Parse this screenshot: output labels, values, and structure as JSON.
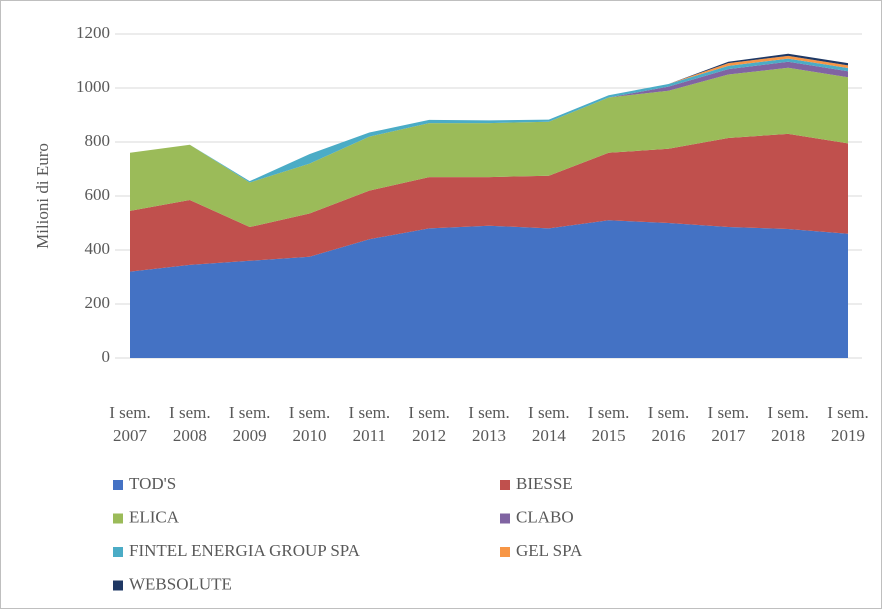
{
  "chart_data": {
    "type": "area",
    "stacked": true,
    "y_label": "Milioni di Euro",
    "categories": [
      "I sem. 2007",
      "I sem. 2008",
      "I sem. 2009",
      "I sem. 2010",
      "I sem. 2011",
      "I sem. 2012",
      "I sem. 2013",
      "I sem. 2014",
      "I sem. 2015",
      "I sem. 2016",
      "I sem. 2017",
      "I sem. 2018",
      "I sem. 2019"
    ],
    "series": [
      {
        "name": "TOD'S",
        "color": "#4472c4",
        "values": [
          320,
          345,
          360,
          375,
          440,
          480,
          490,
          480,
          510,
          500,
          485,
          478,
          460
        ]
      },
      {
        "name": "BIESSE",
        "color": "#c0504d",
        "values": [
          225,
          240,
          125,
          160,
          180,
          190,
          180,
          195,
          250,
          275,
          330,
          352,
          335
        ]
      },
      {
        "name": "ELICA",
        "color": "#9bbb59",
        "values": [
          215,
          205,
          165,
          185,
          200,
          200,
          200,
          200,
          205,
          215,
          235,
          245,
          245
        ]
      },
      {
        "name": "CLABO",
        "color": "#8064a2",
        "values": [
          0,
          0,
          0,
          0,
          0,
          0,
          0,
          0,
          0,
          15,
          20,
          22,
          22
        ]
      },
      {
        "name": "FINTEL ENERGIA GROUP SPA",
        "color": "#4bacc6",
        "values": [
          0,
          0,
          5,
          35,
          15,
          12,
          10,
          8,
          8,
          10,
          12,
          12,
          12
        ]
      },
      {
        "name": "GEL SPA",
        "color": "#f79646",
        "values": [
          0,
          0,
          0,
          0,
          0,
          0,
          0,
          0,
          0,
          0,
          10,
          10,
          10
        ]
      },
      {
        "name": "WEBSOLUTE",
        "color": "#1f3864",
        "values": [
          0,
          0,
          0,
          0,
          0,
          0,
          0,
          0,
          0,
          0,
          5,
          8,
          8
        ]
      }
    ],
    "ylim": [
      0,
      1200
    ],
    "yticks": [
      0,
      200,
      400,
      600,
      800,
      1000,
      1200
    ],
    "grid": true
  }
}
